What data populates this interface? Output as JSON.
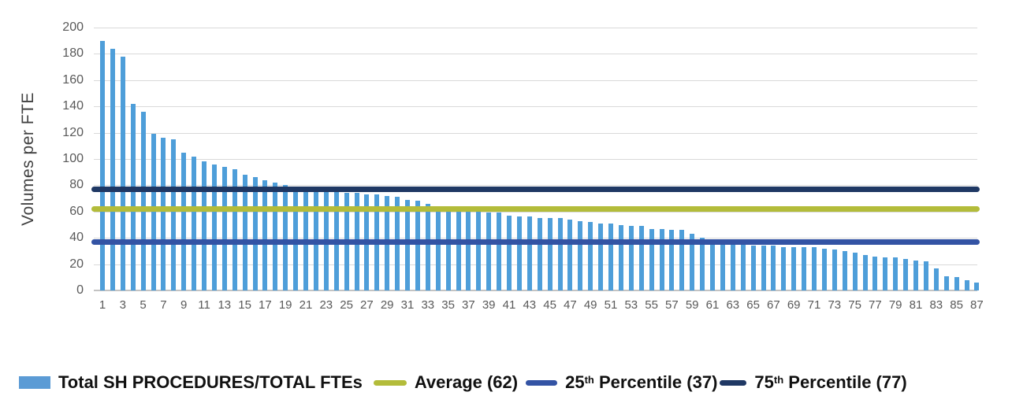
{
  "chart_data": {
    "type": "bar",
    "title": "",
    "xlabel": "",
    "ylabel": "Volumes per FTE",
    "ylim": [
      0,
      200
    ],
    "ytick_step": 20,
    "grid": true,
    "legend_position": "bottom",
    "bar_color": "#4e9ed9",
    "series": [
      {
        "name": "Total SH PROCEDURES/TOTAL FTEs",
        "values": [
          190,
          184,
          178,
          142,
          136,
          119,
          116,
          115,
          105,
          102,
          98,
          96,
          94,
          92,
          88,
          86,
          84,
          82,
          80,
          78,
          77,
          76,
          75,
          75,
          74,
          74,
          73,
          73,
          72,
          71,
          69,
          68,
          66,
          62,
          61,
          61,
          60,
          60,
          59,
          59,
          57,
          56,
          56,
          55,
          55,
          55,
          54,
          53,
          52,
          51,
          51,
          50,
          49,
          49,
          47,
          47,
          46,
          46,
          43,
          40,
          39,
          39,
          39,
          35,
          34,
          34,
          34,
          33,
          33,
          33,
          33,
          32,
          31,
          30,
          29,
          27,
          26,
          25,
          25,
          24,
          23,
          22,
          17,
          11,
          10,
          8,
          6
        ]
      }
    ],
    "reference_lines": [
      {
        "slug": "percentile-75-line",
        "label": "75th Percentile (77)",
        "value": 77,
        "color": "#1f3864"
      },
      {
        "slug": "average-line",
        "label": "Average (62)",
        "value": 62,
        "color": "#b3bc3a"
      },
      {
        "slug": "percentile-25-line",
        "label": "25th Percentile (37)",
        "value": 37,
        "color": "#3353a4"
      }
    ],
    "y_tick_labels": [
      "0",
      "20",
      "40",
      "60",
      "80",
      "100",
      "120",
      "140",
      "160",
      "180",
      "200"
    ],
    "x_tick_labels": [
      "1",
      "3",
      "5",
      "7",
      "9",
      "11",
      "13",
      "15",
      "17",
      "19",
      "21",
      "23",
      "25",
      "27",
      "29",
      "31",
      "33",
      "35",
      "37",
      "39",
      "41",
      "43",
      "45",
      "47",
      "49",
      "51",
      "53",
      "55",
      "57",
      "59",
      "61",
      "63",
      "65",
      "67",
      "69",
      "71",
      "73",
      "75",
      "77",
      "79",
      "81",
      "83",
      "85",
      "87"
    ]
  },
  "y_axis": {
    "title": "Volumes per FTE"
  },
  "legend": {
    "items": [
      {
        "swatch": "bar-swatch",
        "color": "#5b9bd5",
        "pre": "Total SH PROCEDURES/TOTAL FTEs",
        "sup": "",
        "post": ""
      },
      {
        "swatch": "line-swatch",
        "color": "#b3bc3a",
        "pre": "Average (62)",
        "sup": "",
        "post": ""
      },
      {
        "swatch": "line-swatch",
        "color": "#3353a4",
        "pre": "25",
        "sup": "th",
        "post": " Percentile (37)"
      },
      {
        "swatch": "line-swatch",
        "color": "#1f3864",
        "pre": "75",
        "sup": "th",
        "post": " Percentile (77)"
      }
    ]
  }
}
